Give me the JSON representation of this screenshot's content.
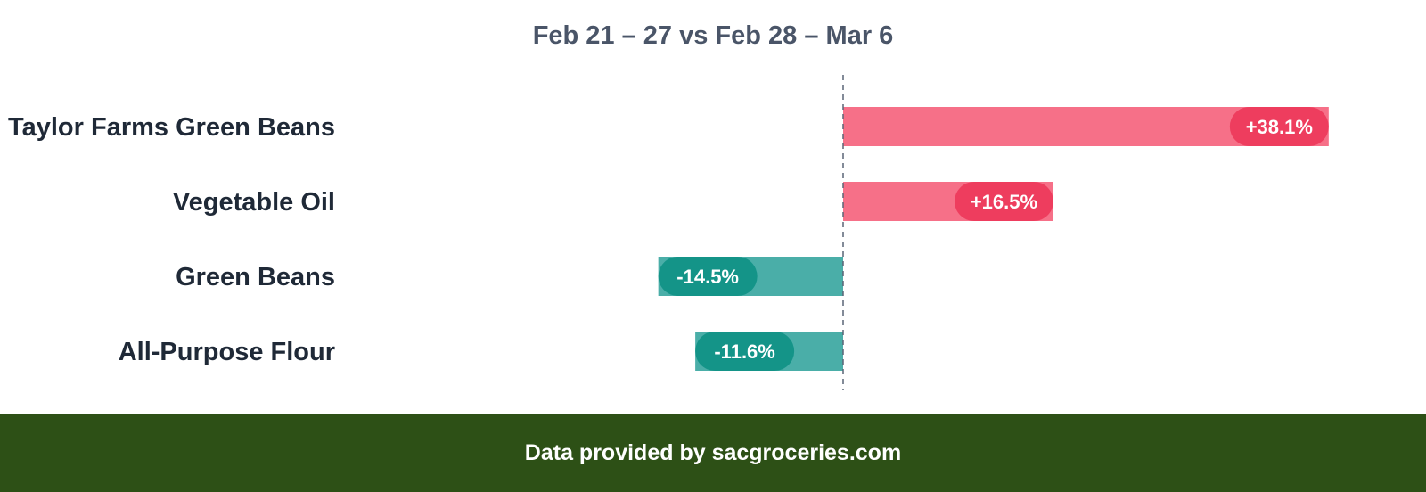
{
  "chart_data": {
    "type": "bar",
    "orientation": "horizontal",
    "title": "Feb 21 – 27 vs Feb 28 – Mar 6",
    "categories": [
      "Taylor Farms Green Beans",
      "Vegetable Oil",
      "Green Beans",
      "All-Purpose Flour"
    ],
    "values": [
      38.1,
      16.5,
      -14.5,
      -11.6
    ],
    "data_labels": [
      "+38.1%",
      "+16.5%",
      "-14.5%",
      "-11.6%"
    ],
    "xlim": [
      -31,
      41
    ],
    "grid": false,
    "zero_line": "dashed",
    "colors": {
      "positive_bar": "#f67088",
      "positive_label": "#ee3d5e",
      "negative_bar": "#4aaea8",
      "negative_label": "#149488"
    }
  },
  "footer": {
    "text": "Data provided by sacgroceries.com"
  }
}
